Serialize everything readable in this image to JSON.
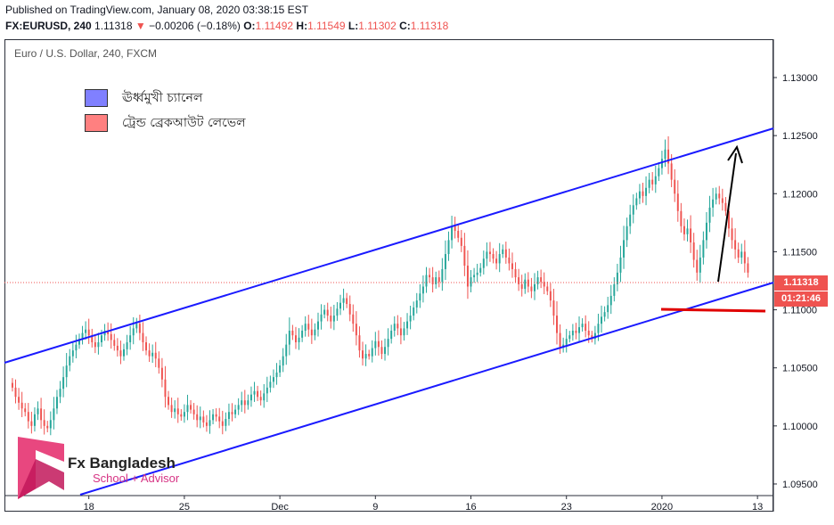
{
  "header": {
    "published": "Published on TradingView.com, January 08, 2020 03:38:15 EST",
    "symbol": "FX:EURUSD, 240",
    "last": "1.11318",
    "change": "−0.00206 (−0.18%)",
    "open_label": "O:",
    "open": "1.11492",
    "high_label": "H:",
    "high": "1.11549",
    "low_label": "L:",
    "low": "1.11302",
    "close_label": "C:",
    "close": "1.11318"
  },
  "chart_title": "Euro / U.S. Dollar, 240, FXCM",
  "legend": [
    {
      "label": "ঊর্ধ্বমুখী চ্যানেল",
      "color": "#8080ff"
    },
    {
      "label": "ট্রেন্ড ব্রেকআউট লেভেল",
      "color": "#ff8080"
    }
  ],
  "price_tag": {
    "price": "1.11318",
    "countdown": "01:21:46"
  },
  "branding": {
    "name": "Fx Bangladesh",
    "tagline": "School + Advisor"
  },
  "chart_data": {
    "type": "candlestick",
    "ylim": [
      1.094,
      1.1333
    ],
    "y_ticks": [
      "1.13000",
      "1.12500",
      "1.12000",
      "1.11500",
      "1.11000",
      "1.10500",
      "1.10000",
      "1.09500"
    ],
    "y_tick_values": [
      1.13,
      1.125,
      1.12,
      1.115,
      1.11,
      1.105,
      1.1,
      1.095
    ],
    "x_ticks": [
      "18",
      "25",
      "Dec",
      "9",
      "16",
      "23",
      "2020",
      "13"
    ],
    "x_tick_index": [
      24,
      54,
      84,
      114,
      144,
      174,
      204,
      234
    ],
    "x_range": [
      -2.5,
      239
    ],
    "close": [
      1.1033,
      1.1025,
      1.102,
      1.1015,
      1.1012,
      1.1004,
      1.1,
      1.101,
      1.1015,
      1.1005,
      1.1,
      1.0998,
      1.1005,
      1.1015,
      1.1025,
      1.1032,
      1.1042,
      1.1052,
      1.106,
      1.1065,
      1.107,
      1.1075,
      1.108,
      1.1083,
      1.1078,
      1.1072,
      1.1068,
      1.1072,
      1.1078,
      1.1082,
      1.1079,
      1.1074,
      1.1069,
      1.1065,
      1.106,
      1.1066,
      1.1072,
      1.1078,
      1.1084,
      1.1088,
      1.108,
      1.1072,
      1.1065,
      1.106,
      1.1063,
      1.1058,
      1.105,
      1.104,
      1.1025,
      1.1018,
      1.1012,
      1.1015,
      1.101,
      1.1008,
      1.1012,
      1.1018,
      1.1014,
      1.101,
      1.1005,
      1.1008,
      1.1003,
      1.1,
      1.1005,
      1.101,
      1.1008,
      1.1004,
      1.1,
      1.1006,
      1.1012,
      1.101,
      1.1014,
      1.1018,
      1.1022,
      1.1018,
      1.1022,
      1.1027,
      1.103,
      1.1025,
      1.1022,
      1.1028,
      1.1033,
      1.1038,
      1.1042,
      1.1046,
      1.1052,
      1.106,
      1.107,
      1.1082,
      1.1078,
      1.1072,
      1.1076,
      1.1082,
      1.1088,
      1.1083,
      1.1078,
      1.1083,
      1.109,
      1.1096,
      1.11,
      1.1095,
      1.109,
      1.1095,
      1.1101,
      1.1106,
      1.111,
      1.1105,
      1.1096,
      1.1088,
      1.1078,
      1.1065,
      1.1058,
      1.1062,
      1.106,
      1.1067,
      1.1073,
      1.1068,
      1.1062,
      1.1068,
      1.1075,
      1.1082,
      1.1088,
      1.1084,
      1.1078,
      1.1084,
      1.109,
      1.1095,
      1.1102,
      1.1108,
      1.1114,
      1.112,
      1.113,
      1.1128,
      1.1122,
      1.1128,
      1.1124,
      1.1135,
      1.1148,
      1.116,
      1.1172,
      1.1168,
      1.1162,
      1.1155,
      1.1138,
      1.112,
      1.1128,
      1.113,
      1.1132,
      1.1136,
      1.1144,
      1.115,
      1.1148,
      1.1144,
      1.114,
      1.1148,
      1.1152,
      1.1145,
      1.114,
      1.1135,
      1.1128,
      1.1122,
      1.1118,
      1.1126,
      1.112,
      1.1116,
      1.1122,
      1.1128,
      1.1124,
      1.112,
      1.1116,
      1.1108,
      1.1095,
      1.108,
      1.1068,
      1.107,
      1.1075,
      1.1078,
      1.1082,
      1.108,
      1.1085,
      1.1088,
      1.1082,
      1.1078,
      1.1075,
      1.108,
      1.1088,
      1.1094,
      1.1098,
      1.1104,
      1.1112,
      1.1122,
      1.1132,
      1.1145,
      1.116,
      1.1172,
      1.1182,
      1.119,
      1.1196,
      1.1202,
      1.1198,
      1.1205,
      1.1212,
      1.1208,
      1.1215,
      1.1222,
      1.123,
      1.1238,
      1.1226,
      1.1212,
      1.12,
      1.1185,
      1.1172,
      1.1165,
      1.117,
      1.1158,
      1.1143,
      1.1132,
      1.1145,
      1.116,
      1.1175,
      1.1188,
      1.1195,
      1.12,
      1.1196,
      1.1192,
      1.1185,
      1.117,
      1.116,
      1.1152,
      1.1145,
      1.115,
      1.114,
      1.1132
    ]
  }
}
